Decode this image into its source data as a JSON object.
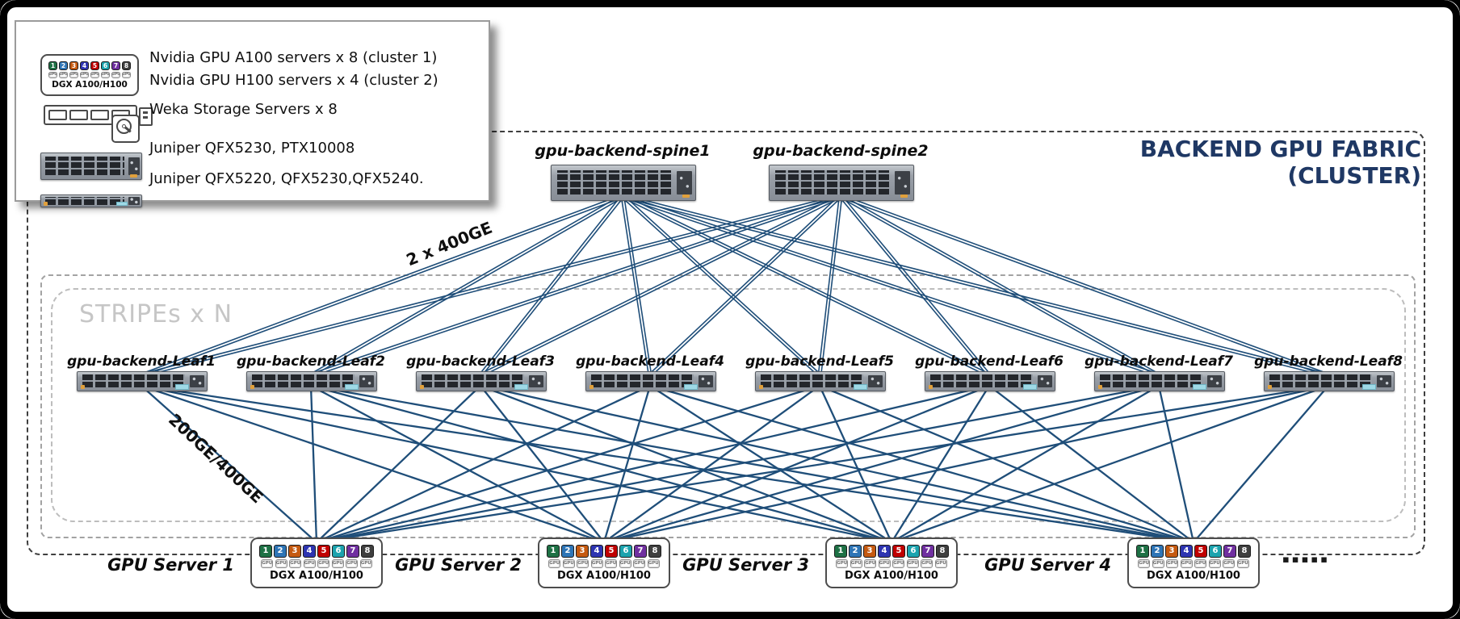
{
  "frame": {
    "title_line1": "BACKEND GPU FABRIC",
    "title_line2": "(CLUSTER)"
  },
  "legend": {
    "rows": [
      {
        "icon": "dgx-server-icon",
        "lines": [
          "Nvidia GPU A100 servers x 8 (cluster 1)",
          "Nvidia GPU H100 servers x 4 (cluster 2)"
        ]
      },
      {
        "icon": "weka-storage-icon",
        "lines": [
          "Weka Storage Servers x 8"
        ]
      },
      {
        "icon": "juniper-2u-switch-icon",
        "lines": [
          "Juniper QFX5230, PTX10008"
        ]
      },
      {
        "icon": "juniper-1u-switch-icon",
        "lines": [
          "Juniper QFX5220, QFX5230,QFX5240."
        ]
      }
    ]
  },
  "dgx": {
    "label": "DGX A100/H100",
    "chip_label": "GPU",
    "gpu_numbers": [
      "1",
      "2",
      "3",
      "4",
      "5",
      "6",
      "7",
      "8"
    ],
    "gpu_colors": [
      "#1e7145",
      "#2e75b6",
      "#c55a11",
      "#2e35b1",
      "#c00000",
      "#1ca3ae",
      "#7030a0",
      "#3f3f3f"
    ]
  },
  "stripes_label": "STRIPEs x N",
  "links": {
    "spine_leaf_label": "2 x 400GE",
    "leaf_server_label": "200GE/400GE",
    "color": "#1f4e79"
  },
  "spines": [
    "gpu-backend-spine1",
    "gpu-backend-spine2"
  ],
  "leaves": [
    "gpu-backend-Leaf1",
    "gpu-backend-Leaf2",
    "gpu-backend-Leaf3",
    "gpu-backend-Leaf4",
    "gpu-backend-Leaf5",
    "gpu-backend-Leaf6",
    "gpu-backend-Leaf7",
    "gpu-backend-Leaf8"
  ],
  "servers": [
    "GPU Server 1",
    "GPU Server 2",
    "GPU Server 3",
    "GPU Server 4"
  ],
  "ellipsis": "▪▪▪▪▪"
}
